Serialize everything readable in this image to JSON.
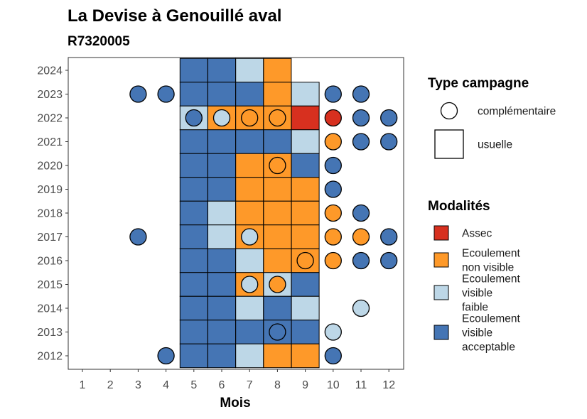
{
  "chart_data": {
    "type": "heatmap",
    "title": "La Devise à Genouillé aval",
    "subtitle": "R7320005",
    "xlabel": "Mois",
    "ylabel": "",
    "x_ticks": [
      "1",
      "2",
      "3",
      "4",
      "5",
      "6",
      "7",
      "8",
      "9",
      "10",
      "11",
      "12"
    ],
    "y_ticks": [
      "2012",
      "2013",
      "2014",
      "2015",
      "2016",
      "2017",
      "2018",
      "2019",
      "2020",
      "2021",
      "2022",
      "2023",
      "2024"
    ],
    "colors": {
      "Assec": "#d7301f",
      "Ecoulement non visible": "#fe9929",
      "Ecoulement visible faible": "#bdd7e7",
      "Ecoulement visible acceptable": "#4575b4"
    },
    "legend": {
      "type_title": "Type campagne",
      "type_items": [
        {
          "shape": "circle",
          "label": "complémentaire"
        },
        {
          "shape": "square",
          "label": "usuelle"
        }
      ],
      "modalites_title": "Modalités",
      "modalites_items": [
        {
          "key": "Assec",
          "lines": [
            "Assec"
          ]
        },
        {
          "key": "Ecoulement non visible",
          "lines": [
            "Ecoulement",
            "non visible"
          ]
        },
        {
          "key": "Ecoulement visible faible",
          "lines": [
            "Ecoulement",
            "visible",
            "faible"
          ]
        },
        {
          "key": "Ecoulement visible acceptable",
          "lines": [
            "Ecoulement",
            "visible",
            "acceptable"
          ]
        }
      ]
    },
    "tiles": [
      {
        "year": 2024,
        "month": 5,
        "m": "Ecoulement visible acceptable"
      },
      {
        "year": 2024,
        "month": 6,
        "m": "Ecoulement visible acceptable"
      },
      {
        "year": 2024,
        "month": 7,
        "m": "Ecoulement visible faible"
      },
      {
        "year": 2024,
        "month": 8,
        "m": "Ecoulement non visible"
      },
      {
        "year": 2023,
        "month": 5,
        "m": "Ecoulement visible acceptable"
      },
      {
        "year": 2023,
        "month": 6,
        "m": "Ecoulement visible acceptable"
      },
      {
        "year": 2023,
        "month": 7,
        "m": "Ecoulement visible acceptable"
      },
      {
        "year": 2023,
        "month": 8,
        "m": "Ecoulement non visible"
      },
      {
        "year": 2023,
        "month": 9,
        "m": "Ecoulement visible faible"
      },
      {
        "year": 2022,
        "month": 5,
        "m": "Ecoulement visible faible"
      },
      {
        "year": 2022,
        "month": 6,
        "m": "Ecoulement non visible"
      },
      {
        "year": 2022,
        "month": 7,
        "m": "Ecoulement non visible"
      },
      {
        "year": 2022,
        "month": 8,
        "m": "Ecoulement non visible"
      },
      {
        "year": 2022,
        "month": 9,
        "m": "Assec"
      },
      {
        "year": 2021,
        "month": 5,
        "m": "Ecoulement visible acceptable"
      },
      {
        "year": 2021,
        "month": 6,
        "m": "Ecoulement visible acceptable"
      },
      {
        "year": 2021,
        "month": 7,
        "m": "Ecoulement visible acceptable"
      },
      {
        "year": 2021,
        "month": 8,
        "m": "Ecoulement visible acceptable"
      },
      {
        "year": 2021,
        "month": 9,
        "m": "Ecoulement visible faible"
      },
      {
        "year": 2020,
        "month": 5,
        "m": "Ecoulement visible acceptable"
      },
      {
        "year": 2020,
        "month": 6,
        "m": "Ecoulement visible acceptable"
      },
      {
        "year": 2020,
        "month": 7,
        "m": "Ecoulement non visible"
      },
      {
        "year": 2020,
        "month": 8,
        "m": "Ecoulement non visible"
      },
      {
        "year": 2020,
        "month": 9,
        "m": "Ecoulement visible acceptable"
      },
      {
        "year": 2019,
        "month": 5,
        "m": "Ecoulement visible acceptable"
      },
      {
        "year": 2019,
        "month": 6,
        "m": "Ecoulement visible acceptable"
      },
      {
        "year": 2019,
        "month": 7,
        "m": "Ecoulement non visible"
      },
      {
        "year": 2019,
        "month": 8,
        "m": "Ecoulement non visible"
      },
      {
        "year": 2019,
        "month": 9,
        "m": "Ecoulement non visible"
      },
      {
        "year": 2018,
        "month": 5,
        "m": "Ecoulement visible acceptable"
      },
      {
        "year": 2018,
        "month": 6,
        "m": "Ecoulement visible faible"
      },
      {
        "year": 2018,
        "month": 7,
        "m": "Ecoulement non visible"
      },
      {
        "year": 2018,
        "month": 8,
        "m": "Ecoulement non visible"
      },
      {
        "year": 2018,
        "month": 9,
        "m": "Ecoulement non visible"
      },
      {
        "year": 2017,
        "month": 5,
        "m": "Ecoulement visible acceptable"
      },
      {
        "year": 2017,
        "month": 6,
        "m": "Ecoulement visible faible"
      },
      {
        "year": 2017,
        "month": 7,
        "m": "Ecoulement non visible"
      },
      {
        "year": 2017,
        "month": 8,
        "m": "Ecoulement non visible"
      },
      {
        "year": 2017,
        "month": 9,
        "m": "Ecoulement non visible"
      },
      {
        "year": 2016,
        "month": 5,
        "m": "Ecoulement visible acceptable"
      },
      {
        "year": 2016,
        "month": 6,
        "m": "Ecoulement visible acceptable"
      },
      {
        "year": 2016,
        "month": 7,
        "m": "Ecoulement visible faible"
      },
      {
        "year": 2016,
        "month": 8,
        "m": "Ecoulement non visible"
      },
      {
        "year": 2016,
        "month": 9,
        "m": "Ecoulement non visible"
      },
      {
        "year": 2015,
        "month": 5,
        "m": "Ecoulement visible acceptable"
      },
      {
        "year": 2015,
        "month": 6,
        "m": "Ecoulement visible acceptable"
      },
      {
        "year": 2015,
        "month": 7,
        "m": "Ecoulement non visible"
      },
      {
        "year": 2015,
        "month": 8,
        "m": "Ecoulement visible faible"
      },
      {
        "year": 2015,
        "month": 9,
        "m": "Ecoulement visible acceptable"
      },
      {
        "year": 2014,
        "month": 5,
        "m": "Ecoulement visible acceptable"
      },
      {
        "year": 2014,
        "month": 6,
        "m": "Ecoulement visible acceptable"
      },
      {
        "year": 2014,
        "month": 7,
        "m": "Ecoulement visible faible"
      },
      {
        "year": 2014,
        "month": 8,
        "m": "Ecoulement visible acceptable"
      },
      {
        "year": 2014,
        "month": 9,
        "m": "Ecoulement visible faible"
      },
      {
        "year": 2013,
        "month": 5,
        "m": "Ecoulement visible acceptable"
      },
      {
        "year": 2013,
        "month": 6,
        "m": "Ecoulement visible acceptable"
      },
      {
        "year": 2013,
        "month": 7,
        "m": "Ecoulement visible acceptable"
      },
      {
        "year": 2013,
        "month": 8,
        "m": "Ecoulement visible acceptable"
      },
      {
        "year": 2013,
        "month": 9,
        "m": "Ecoulement visible acceptable"
      },
      {
        "year": 2012,
        "month": 5,
        "m": "Ecoulement visible acceptable"
      },
      {
        "year": 2012,
        "month": 6,
        "m": "Ecoulement visible acceptable"
      },
      {
        "year": 2012,
        "month": 7,
        "m": "Ecoulement visible faible"
      },
      {
        "year": 2012,
        "month": 8,
        "m": "Ecoulement non visible"
      },
      {
        "year": 2012,
        "month": 9,
        "m": "Ecoulement non visible"
      }
    ],
    "points": [
      {
        "year": 2023,
        "month": 3,
        "m": "Ecoulement visible acceptable"
      },
      {
        "year": 2023,
        "month": 4,
        "m": "Ecoulement visible acceptable"
      },
      {
        "year": 2023,
        "month": 10,
        "m": "Ecoulement visible acceptable"
      },
      {
        "year": 2023,
        "month": 11,
        "m": "Ecoulement visible acceptable"
      },
      {
        "year": 2022,
        "month": 5,
        "m": "Ecoulement visible acceptable"
      },
      {
        "year": 2022,
        "month": 6,
        "m": "Ecoulement visible faible"
      },
      {
        "year": 2022,
        "month": 7,
        "m": "Ecoulement non visible"
      },
      {
        "year": 2022,
        "month": 8,
        "m": "Ecoulement non visible"
      },
      {
        "year": 2022,
        "month": 10,
        "m": "Assec"
      },
      {
        "year": 2022,
        "month": 11,
        "m": "Ecoulement visible acceptable"
      },
      {
        "year": 2022,
        "month": 12,
        "m": "Ecoulement visible acceptable"
      },
      {
        "year": 2021,
        "month": 10,
        "m": "Ecoulement non visible"
      },
      {
        "year": 2021,
        "month": 11,
        "m": "Ecoulement visible acceptable"
      },
      {
        "year": 2021,
        "month": 12,
        "m": "Ecoulement visible acceptable"
      },
      {
        "year": 2020,
        "month": 8,
        "m": "Ecoulement non visible"
      },
      {
        "year": 2020,
        "month": 10,
        "m": "Ecoulement visible acceptable"
      },
      {
        "year": 2019,
        "month": 10,
        "m": "Ecoulement visible acceptable"
      },
      {
        "year": 2018,
        "month": 10,
        "m": "Ecoulement non visible"
      },
      {
        "year": 2018,
        "month": 11,
        "m": "Ecoulement visible acceptable"
      },
      {
        "year": 2017,
        "month": 3,
        "m": "Ecoulement visible acceptable"
      },
      {
        "year": 2017,
        "month": 7,
        "m": "Ecoulement visible faible"
      },
      {
        "year": 2017,
        "month": 10,
        "m": "Ecoulement non visible"
      },
      {
        "year": 2017,
        "month": 11,
        "m": "Ecoulement non visible"
      },
      {
        "year": 2017,
        "month": 12,
        "m": "Ecoulement visible acceptable"
      },
      {
        "year": 2016,
        "month": 9,
        "m": "Ecoulement non visible"
      },
      {
        "year": 2016,
        "month": 10,
        "m": "Ecoulement non visible"
      },
      {
        "year": 2016,
        "month": 11,
        "m": "Ecoulement visible acceptable"
      },
      {
        "year": 2016,
        "month": 12,
        "m": "Ecoulement visible acceptable"
      },
      {
        "year": 2015,
        "month": 7,
        "m": "Ecoulement visible faible"
      },
      {
        "year": 2015,
        "month": 8,
        "m": "Ecoulement non visible"
      },
      {
        "year": 2014,
        "month": 11,
        "m": "Ecoulement visible faible"
      },
      {
        "year": 2013,
        "month": 8,
        "m": "Ecoulement visible acceptable"
      },
      {
        "year": 2013,
        "month": 10,
        "m": "Ecoulement visible faible"
      },
      {
        "year": 2012,
        "month": 4,
        "m": "Ecoulement visible acceptable"
      },
      {
        "year": 2012,
        "month": 10,
        "m": "Ecoulement visible acceptable"
      }
    ]
  }
}
